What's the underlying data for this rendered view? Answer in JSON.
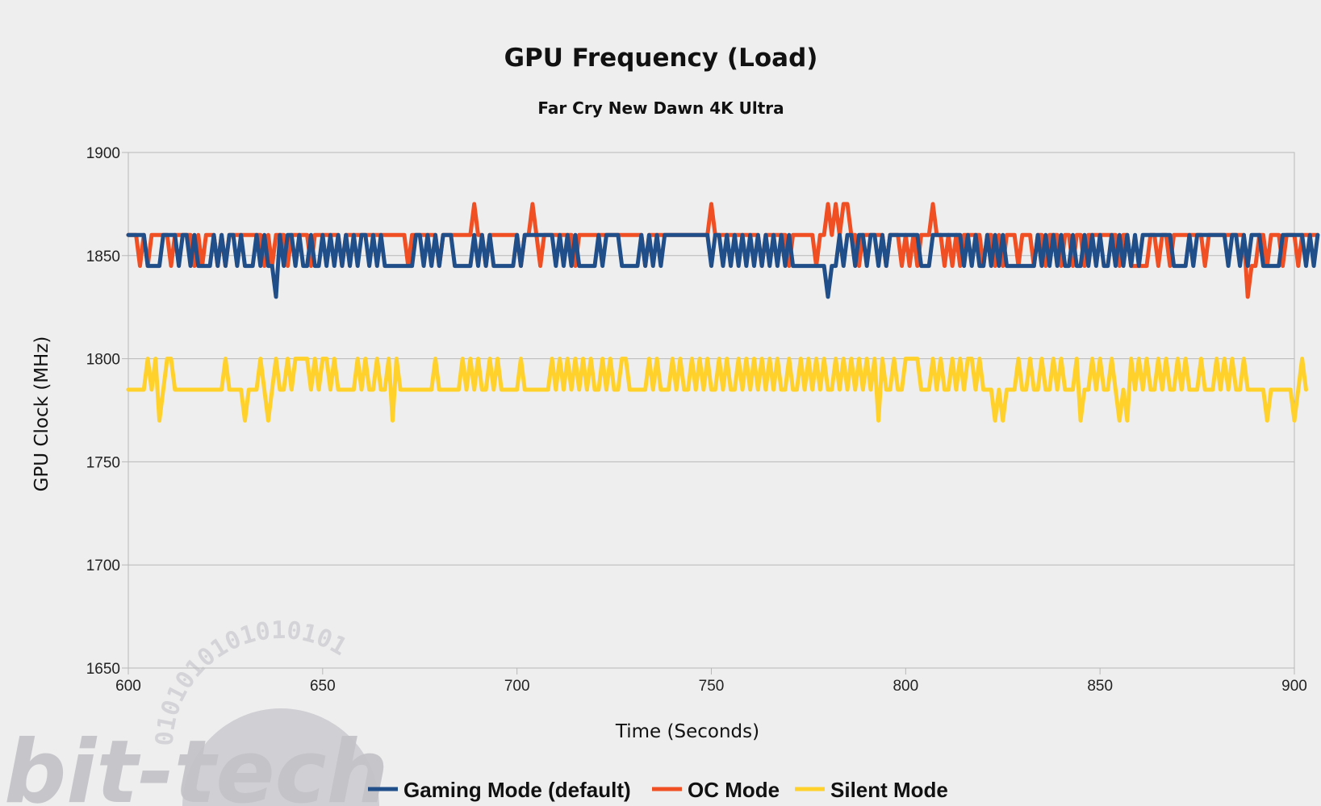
{
  "watermark": {
    "text": "bit-tech",
    "ring_text": "0101010101010101"
  },
  "chart_data": {
    "type": "line",
    "title": "GPU Frequency (Load)",
    "subtitle": "Far Cry New Dawn 4K Ultra",
    "xlabel": "Time (Seconds)",
    "ylabel": "GPU Clock (MHz)",
    "xlim": [
      600,
      900
    ],
    "ylim": [
      1650,
      1900
    ],
    "x_ticks": [
      600,
      650,
      700,
      750,
      800,
      850,
      900
    ],
    "y_ticks": [
      1650,
      1700,
      1750,
      1800,
      1850,
      1900
    ],
    "grid": "horizontal",
    "legend_position": "bottom",
    "x_start": 600,
    "x_step": 1,
    "series": [
      {
        "name": "Gaming Mode (default)",
        "color": "#1f4e89",
        "values": [
          1860,
          1860,
          1860,
          1860,
          1860,
          1845,
          1845,
          1845,
          1845,
          1860,
          1860,
          1860,
          1860,
          1845,
          1860,
          1860,
          1845,
          1860,
          1845,
          1845,
          1845,
          1845,
          1860,
          1845,
          1860,
          1845,
          1860,
          1860,
          1845,
          1860,
          1845,
          1845,
          1845,
          1860,
          1845,
          1860,
          1845,
          1845,
          1830,
          1860,
          1845,
          1860,
          1860,
          1845,
          1860,
          1845,
          1845,
          1860,
          1845,
          1845,
          1860,
          1845,
          1860,
          1845,
          1860,
          1845,
          1860,
          1845,
          1860,
          1845,
          1860,
          1860,
          1845,
          1860,
          1845,
          1860,
          1845,
          1845,
          1845,
          1845,
          1845,
          1845,
          1845,
          1845,
          1860,
          1860,
          1845,
          1860,
          1845,
          1860,
          1845,
          1860,
          1860,
          1860,
          1845,
          1845,
          1845,
          1845,
          1845,
          1860,
          1845,
          1860,
          1845,
          1860,
          1845,
          1845,
          1845,
          1845,
          1845,
          1845,
          1860,
          1845,
          1860,
          1860,
          1860,
          1860,
          1860,
          1860,
          1860,
          1860,
          1845,
          1860,
          1845,
          1860,
          1845,
          1860,
          1845,
          1845,
          1845,
          1845,
          1845,
          1860,
          1845,
          1860,
          1860,
          1860,
          1860,
          1845,
          1845,
          1845,
          1845,
          1845,
          1860,
          1845,
          1860,
          1845,
          1860,
          1845,
          1860,
          1860,
          1860,
          1860,
          1860,
          1860,
          1860,
          1860,
          1860,
          1860,
          1860,
          1860,
          1845,
          1860,
          1860,
          1845,
          1860,
          1845,
          1860,
          1845,
          1860,
          1845,
          1860,
          1845,
          1860,
          1845,
          1860,
          1845,
          1860,
          1845,
          1860,
          1845,
          1860,
          1845,
          1845,
          1845,
          1845,
          1845,
          1845,
          1845,
          1845,
          1845,
          1830,
          1845,
          1845,
          1860,
          1845,
          1860,
          1860,
          1845,
          1860,
          1860,
          1845,
          1860,
          1860,
          1845,
          1860,
          1845,
          1860,
          1860,
          1860,
          1860,
          1860,
          1860,
          1860,
          1860,
          1845,
          1845,
          1845,
          1860,
          1860,
          1860,
          1860,
          1860,
          1860,
          1860,
          1860,
          1845,
          1860,
          1845,
          1860,
          1845,
          1845,
          1860,
          1845,
          1860,
          1845,
          1860,
          1845,
          1845,
          1845,
          1845,
          1845,
          1845,
          1845,
          1845,
          1860,
          1845,
          1860,
          1845,
          1860,
          1845,
          1860,
          1845,
          1845,
          1860,
          1845,
          1845,
          1860,
          1845,
          1860,
          1845,
          1860,
          1845,
          1845,
          1860,
          1845,
          1860,
          1845,
          1860,
          1845,
          1860,
          1845,
          1860,
          1860,
          1860,
          1860,
          1860,
          1860,
          1860,
          1860,
          1845,
          1845,
          1845,
          1845,
          1860,
          1845,
          1860,
          1860,
          1860,
          1860,
          1860,
          1860,
          1860,
          1860,
          1845,
          1860,
          1860,
          1845,
          1860,
          1845,
          1860,
          1860,
          1860,
          1845,
          1845,
          1845,
          1845,
          1845,
          1860,
          1860,
          1860,
          1860,
          1860,
          1860,
          1845,
          1860,
          1845,
          1860
        ]
      },
      {
        "name": "OC Mode",
        "color": "#f04e23",
        "values": [
          1860,
          1860,
          1860,
          1845,
          1860,
          1845,
          1860,
          1860,
          1860,
          1860,
          1860,
          1845,
          1860,
          1860,
          1860,
          1860,
          1860,
          1845,
          1860,
          1845,
          1860,
          1860,
          1860,
          1845,
          1860,
          1845,
          1860,
          1860,
          1860,
          1860,
          1860,
          1860,
          1860,
          1860,
          1860,
          1845,
          1860,
          1845,
          1860,
          1860,
          1860,
          1845,
          1860,
          1860,
          1860,
          1860,
          1860,
          1845,
          1860,
          1860,
          1860,
          1860,
          1860,
          1860,
          1860,
          1845,
          1860,
          1860,
          1860,
          1860,
          1860,
          1860,
          1860,
          1860,
          1860,
          1860,
          1860,
          1860,
          1860,
          1860,
          1860,
          1860,
          1845,
          1860,
          1860,
          1860,
          1860,
          1860,
          1860,
          1860,
          1845,
          1860,
          1860,
          1860,
          1860,
          1860,
          1860,
          1860,
          1860,
          1875,
          1860,
          1860,
          1845,
          1860,
          1860,
          1860,
          1860,
          1860,
          1860,
          1860,
          1860,
          1845,
          1860,
          1860,
          1875,
          1860,
          1845,
          1860,
          1860,
          1860,
          1860,
          1860,
          1860,
          1860,
          1860,
          1845,
          1860,
          1860,
          1860,
          1860,
          1860,
          1860,
          1860,
          1860,
          1860,
          1860,
          1860,
          1860,
          1860,
          1860,
          1860,
          1860,
          1860,
          1845,
          1860,
          1860,
          1860,
          1860,
          1860,
          1860,
          1860,
          1860,
          1860,
          1860,
          1860,
          1860,
          1860,
          1860,
          1860,
          1860,
          1875,
          1860,
          1860,
          1860,
          1860,
          1860,
          1860,
          1860,
          1860,
          1860,
          1860,
          1860,
          1860,
          1845,
          1860,
          1860,
          1860,
          1860,
          1860,
          1860,
          1845,
          1860,
          1860,
          1860,
          1860,
          1860,
          1860,
          1845,
          1860,
          1860,
          1875,
          1860,
          1875,
          1860,
          1875,
          1875,
          1860,
          1860,
          1845,
          1860,
          1860,
          1860,
          1860,
          1860,
          1860,
          1845,
          1860,
          1860,
          1860,
          1845,
          1860,
          1845,
          1860,
          1845,
          1860,
          1860,
          1860,
          1875,
          1860,
          1860,
          1845,
          1860,
          1845,
          1860,
          1845,
          1860,
          1860,
          1860,
          1860,
          1860,
          1845,
          1860,
          1860,
          1845,
          1860,
          1845,
          1860,
          1860,
          1860,
          1845,
          1860,
          1860,
          1860,
          1845,
          1860,
          1860,
          1845,
          1860,
          1860,
          1860,
          1845,
          1860,
          1860,
          1845,
          1860,
          1860,
          1845,
          1860,
          1860,
          1860,
          1860,
          1860,
          1860,
          1860,
          1860,
          1845,
          1860,
          1860,
          1845,
          1845,
          1845,
          1845,
          1845,
          1860,
          1860,
          1845,
          1860,
          1860,
          1845,
          1860,
          1860,
          1860,
          1860,
          1860,
          1860,
          1860,
          1860,
          1845,
          1860,
          1860,
          1860,
          1860,
          1860,
          1860,
          1860,
          1860,
          1860,
          1860,
          1830,
          1845,
          1845,
          1860,
          1860,
          1845,
          1860,
          1860,
          1860,
          1845,
          1860,
          1860,
          1860,
          1845,
          1860,
          1860,
          1860,
          1860,
          1860
        ]
      },
      {
        "name": "Silent Mode",
        "color": "#ffd12a",
        "values": [
          1785,
          1785,
          1785,
          1785,
          1785,
          1800,
          1785,
          1800,
          1770,
          1785,
          1800,
          1800,
          1785,
          1785,
          1785,
          1785,
          1785,
          1785,
          1785,
          1785,
          1785,
          1785,
          1785,
          1785,
          1785,
          1800,
          1785,
          1785,
          1785,
          1785,
          1770,
          1785,
          1785,
          1785,
          1800,
          1785,
          1770,
          1785,
          1800,
          1785,
          1785,
          1800,
          1785,
          1800,
          1800,
          1800,
          1800,
          1785,
          1800,
          1785,
          1800,
          1800,
          1785,
          1800,
          1785,
          1785,
          1785,
          1785,
          1785,
          1800,
          1785,
          1800,
          1785,
          1785,
          1800,
          1785,
          1785,
          1800,
          1770,
          1800,
          1785,
          1785,
          1785,
          1785,
          1785,
          1785,
          1785,
          1785,
          1785,
          1800,
          1785,
          1785,
          1785,
          1785,
          1785,
          1785,
          1800,
          1785,
          1800,
          1785,
          1800,
          1785,
          1785,
          1800,
          1785,
          1800,
          1785,
          1785,
          1785,
          1785,
          1785,
          1800,
          1785,
          1785,
          1785,
          1785,
          1785,
          1785,
          1785,
          1800,
          1785,
          1800,
          1785,
          1800,
          1785,
          1800,
          1785,
          1800,
          1785,
          1800,
          1785,
          1785,
          1800,
          1785,
          1800,
          1785,
          1785,
          1800,
          1800,
          1785,
          1785,
          1785,
          1785,
          1785,
          1800,
          1785,
          1800,
          1785,
          1785,
          1785,
          1800,
          1785,
          1800,
          1785,
          1785,
          1800,
          1785,
          1800,
          1785,
          1800,
          1785,
          1785,
          1800,
          1785,
          1800,
          1785,
          1785,
          1800,
          1785,
          1800,
          1785,
          1800,
          1785,
          1800,
          1785,
          1800,
          1785,
          1800,
          1785,
          1785,
          1800,
          1785,
          1785,
          1800,
          1785,
          1800,
          1785,
          1800,
          1785,
          1800,
          1785,
          1785,
          1800,
          1785,
          1800,
          1785,
          1800,
          1785,
          1800,
          1785,
          1800,
          1785,
          1800,
          1770,
          1800,
          1785,
          1785,
          1800,
          1785,
          1785,
          1800,
          1800,
          1800,
          1800,
          1785,
          1785,
          1785,
          1800,
          1785,
          1800,
          1785,
          1785,
          1800,
          1785,
          1800,
          1785,
          1800,
          1800,
          1785,
          1800,
          1785,
          1785,
          1785,
          1770,
          1785,
          1770,
          1785,
          1785,
          1785,
          1800,
          1785,
          1785,
          1800,
          1785,
          1785,
          1800,
          1785,
          1785,
          1800,
          1785,
          1800,
          1785,
          1785,
          1785,
          1800,
          1770,
          1785,
          1785,
          1800,
          1785,
          1800,
          1785,
          1785,
          1800,
          1785,
          1770,
          1785,
          1770,
          1800,
          1785,
          1800,
          1785,
          1800,
          1785,
          1785,
          1800,
          1785,
          1800,
          1785,
          1785,
          1800,
          1785,
          1800,
          1785,
          1785,
          1785,
          1800,
          1785,
          1785,
          1785,
          1800,
          1785,
          1800,
          1785,
          1800,
          1785,
          1785,
          1800,
          1785,
          1785,
          1785,
          1785,
          1785,
          1770,
          1785,
          1785,
          1785,
          1785,
          1785,
          1785,
          1770,
          1785,
          1800,
          1785
        ]
      }
    ]
  }
}
